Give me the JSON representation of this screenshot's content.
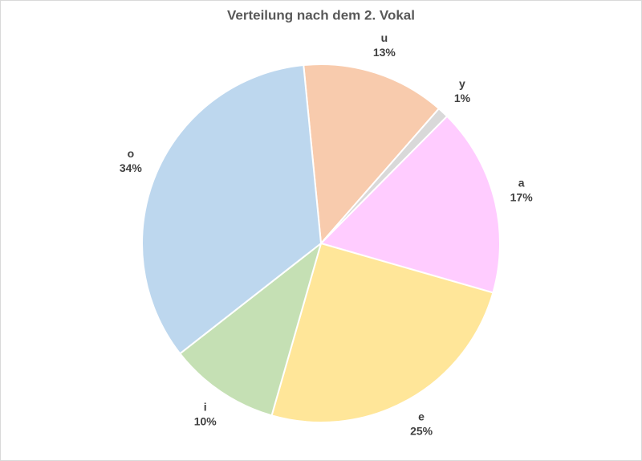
{
  "chart_data": {
    "type": "pie",
    "title": "Verteilung nach dem 2. Vokal",
    "categories": [
      "u",
      "y",
      "a",
      "e",
      "i",
      "o"
    ],
    "values": [
      13,
      1,
      17,
      25,
      10,
      34
    ],
    "value_labels": [
      "13%",
      "1%",
      "17%",
      "25%",
      "10%",
      "34%"
    ],
    "colors": [
      "#f8cbad",
      "#d9d9d9",
      "#ffccff",
      "#ffe699",
      "#c5e0b4",
      "#bdd7ee"
    ]
  }
}
